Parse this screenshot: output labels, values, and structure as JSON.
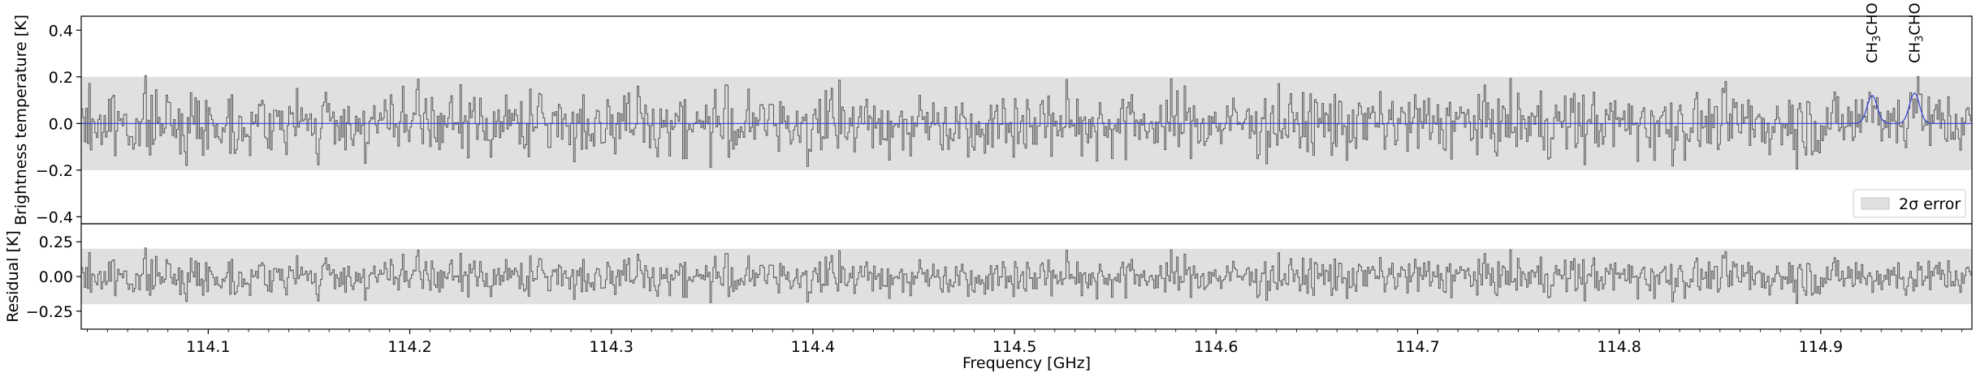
{
  "chart_data": [
    {
      "type": "line",
      "panel": "spectrum",
      "ylabel": "Brightness temperature [K]",
      "ylim": [
        -0.43,
        0.46
      ],
      "yticks": [
        -0.4,
        -0.2,
        0.0,
        0.2,
        0.4
      ],
      "ytick_labels": [
        "−0.4",
        "−0.2",
        "0.0",
        "0.2",
        "0.4"
      ],
      "xlim": [
        114.037,
        114.975
      ],
      "error_band": {
        "label": "2σ error",
        "lower": -0.2,
        "upper": 0.2,
        "color": "#e0e0e0"
      },
      "legend": {
        "position": "lower-right",
        "entries": [
          "2σ error"
        ]
      },
      "series": [
        {
          "role": "observed",
          "style": "steps",
          "color": "#555555",
          "n_channels": 1248,
          "amplitude_K": 0.1,
          "seed": 7
        },
        {
          "role": "model",
          "style": "line",
          "color": "#2f3fd6",
          "baseline": 0.0,
          "peaks": [
            {
              "freq": 114.9255,
              "height": 0.12,
              "width": 0.0025
            },
            {
              "freq": 114.9465,
              "height": 0.13,
              "width": 0.0025
            }
          ]
        }
      ],
      "annotations": [
        {
          "freq": 114.9255,
          "name": "CH3CHO",
          "text": "CH",
          "sub": "3",
          "text2": "CHO"
        },
        {
          "freq": 114.9465,
          "name": "CH3CHO",
          "text": "CH",
          "sub": "3",
          "text2": "CHO"
        }
      ]
    },
    {
      "type": "line",
      "panel": "residual",
      "ylabel": "Residual [K]",
      "ylim": [
        -0.38,
        0.38
      ],
      "yticks": [
        -0.25,
        0.0,
        0.25
      ],
      "ytick_labels": [
        "−0.25",
        "0.00",
        "0.25"
      ],
      "xlim": [
        114.037,
        114.975
      ],
      "xlabel": "Frequency [GHz]",
      "xticks": [
        114.1,
        114.2,
        114.3,
        114.4,
        114.5,
        114.6,
        114.7,
        114.8,
        114.9
      ],
      "xtick_labels": [
        "114.1",
        "114.2",
        "114.3",
        "114.4",
        "114.5",
        "114.6",
        "114.7",
        "114.8",
        "114.9"
      ],
      "error_band": {
        "lower": -0.2,
        "upper": 0.2,
        "color": "#e0e0e0"
      },
      "series": [
        {
          "role": "residual",
          "style": "steps",
          "color": "#555555"
        }
      ]
    }
  ]
}
